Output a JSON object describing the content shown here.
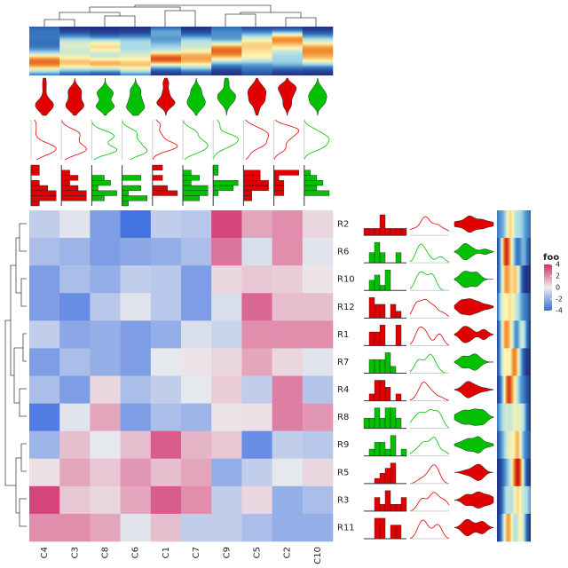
{
  "chart_data": {
    "type": "heatmap",
    "columns": [
      "C4",
      "C3",
      "C8",
      "C6",
      "C1",
      "C7",
      "C9",
      "C5",
      "C2",
      "C10"
    ],
    "rows": [
      "R2",
      "R6",
      "R10",
      "R12",
      "R1",
      "R7",
      "R4",
      "R8",
      "R9",
      "R5",
      "R3",
      "R11"
    ],
    "values": [
      [
        -1,
        -0.3,
        -2.5,
        -3.8,
        -1,
        -1.2,
        3.5,
        1.5,
        2,
        0.5
      ],
      [
        -1.5,
        -1.8,
        -2.5,
        -2.2,
        -2,
        -1.5,
        2.5,
        -0.5,
        2,
        -0.3
      ],
      [
        -2.5,
        -1.5,
        -2,
        -1,
        -1.2,
        -2.5,
        0.5,
        0.8,
        0.7,
        0.2
      ],
      [
        -2.5,
        -3,
        -1.2,
        -0.3,
        -1.2,
        -2.5,
        -0.5,
        2.8,
        1,
        1
      ],
      [
        -1,
        -2.2,
        -2,
        -2.5,
        -2,
        -0.5,
        -0.8,
        2,
        2,
        2
      ],
      [
        -2.5,
        -1.5,
        -2,
        -2.5,
        -0.2,
        0.2,
        0.5,
        1.5,
        0.5,
        -0.3
      ],
      [
        -1.5,
        -2.5,
        0.5,
        -1.5,
        -1,
        -0.2,
        0.7,
        -1,
        2.3,
        -1.3
      ],
      [
        -3.5,
        -0.3,
        1.5,
        -2.5,
        -1.5,
        -1.8,
        0.2,
        0.3,
        2.3,
        1.8
      ],
      [
        -1.8,
        1,
        -0.2,
        1,
        3,
        1.2,
        0.8,
        -3,
        -1,
        -1.2
      ],
      [
        0.3,
        1.5,
        0.8,
        1.8,
        1,
        1.5,
        -2,
        -1,
        -0.2,
        0.5
      ],
      [
        3.5,
        0.8,
        0.5,
        1.5,
        3,
        2,
        -1,
        0.5,
        -2,
        -1.5
      ],
      [
        2,
        2,
        1.5,
        -0.3,
        1,
        -1,
        -1,
        -1.5,
        -2,
        -2
      ]
    ],
    "clim": [
      -4,
      4
    ],
    "colors": {
      "low": "#3a6de0",
      "mid": "#eeeeee",
      "high": "#d12d6a"
    },
    "column_group_colors": [
      "#e00000",
      "#e00000",
      "#00c000",
      "#00c000",
      "#e00000",
      "#00c000",
      "#00c000",
      "#e00000",
      "#e00000",
      "#00c000"
    ],
    "row_group_colors": [
      "#e00000",
      "#00c000",
      "#00c000",
      "#e00000",
      "#e00000",
      "#00c000",
      "#e00000",
      "#00c000",
      "#00c000",
      "#e00000",
      "#e00000",
      "#e00000"
    ],
    "legend_title": "foo",
    "legend_ticks": [
      4,
      2,
      0,
      -2,
      -4
    ]
  }
}
